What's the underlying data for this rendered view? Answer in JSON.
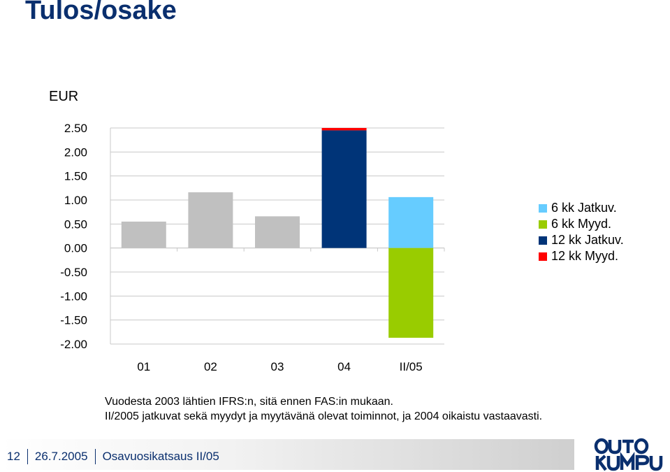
{
  "slide": {
    "title": "Tulos/osake",
    "unit_label": "EUR",
    "notes": [
      "Vuodesta 2003 lähtien IFRS:n, sitä ennen FAS:in mukaan.",
      "II/2005 jatkuvat sekä myydyt ja myytävänä olevat toiminnot, ja 2004 oikaistu vastaavasti."
    ],
    "footer": {
      "page_number": "12",
      "date": "26.7.2005",
      "presentation": "Osavuosikatsaus II/05"
    },
    "logo": {
      "text": "OUTOKUMPU",
      "color": "#0a2f6e"
    }
  },
  "chart_data": {
    "type": "bar",
    "stacked": true,
    "categories": [
      "01",
      "02",
      "03",
      "04",
      "II/05"
    ],
    "ylim": [
      -2.0,
      2.5
    ],
    "yticks": [
      "2.50",
      "2.00",
      "1.50",
      "1.00",
      "0.50",
      "0.00",
      "-0.50",
      "-1.00",
      "-1.50",
      "-2.00"
    ],
    "ytick_values": [
      2.5,
      2.0,
      1.5,
      1.0,
      0.5,
      0.0,
      -0.5,
      -1.0,
      -1.5,
      -2.0
    ],
    "grid": true,
    "legend_position": "right",
    "bar_color_default": "#c0c0c0",
    "series": [
      {
        "name": "",
        "color": "#c0c0c0",
        "values": [
          0.55,
          1.16,
          0.66,
          0,
          0
        ]
      },
      {
        "name": "6 kk Jatkuv.",
        "color": "#66ccff",
        "values": [
          0,
          0,
          0,
          0,
          1.06
        ]
      },
      {
        "name": "6 kk Myyd.",
        "color": "#99cc00",
        "values": [
          0,
          0,
          0,
          0,
          -1.87
        ]
      },
      {
        "name": "12 kk Jatkuv.",
        "color": "#003478",
        "values": [
          0,
          0,
          0,
          2.45,
          0
        ]
      },
      {
        "name": "12 kk Myyd.",
        "color": "#ff0000",
        "values": [
          0,
          0,
          0,
          0.05,
          0
        ]
      }
    ],
    "legend": [
      {
        "name": "6 kk Jatkuv.",
        "color": "#66ccff"
      },
      {
        "name": "6 kk Myyd.",
        "color": "#99cc00"
      },
      {
        "name": "12 kk Jatkuv.",
        "color": "#003478"
      },
      {
        "name": "12 kk Myyd.",
        "color": "#ff0000"
      }
    ]
  }
}
